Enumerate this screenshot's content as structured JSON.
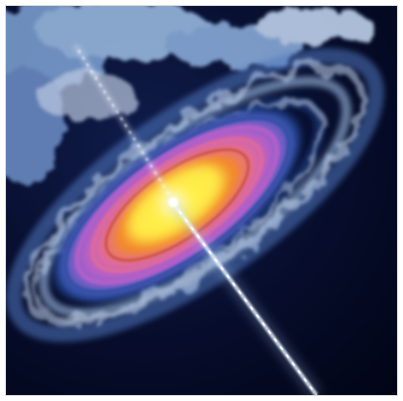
{
  "image": {
    "subject": "accretion-disk-with-jets",
    "colors": {
      "space": "#050a24",
      "space_deep": "#020516",
      "cloud": "#9fc0e6",
      "cloud_bright": "#dceaff",
      "disk_outer": "#2a4fa3",
      "disk_violet": "#b45fc8",
      "disk_pink": "#e06a9a",
      "disk_orange": "#f2892e",
      "disk_core": "#fff04a",
      "jet": "#eaf2ff"
    }
  }
}
